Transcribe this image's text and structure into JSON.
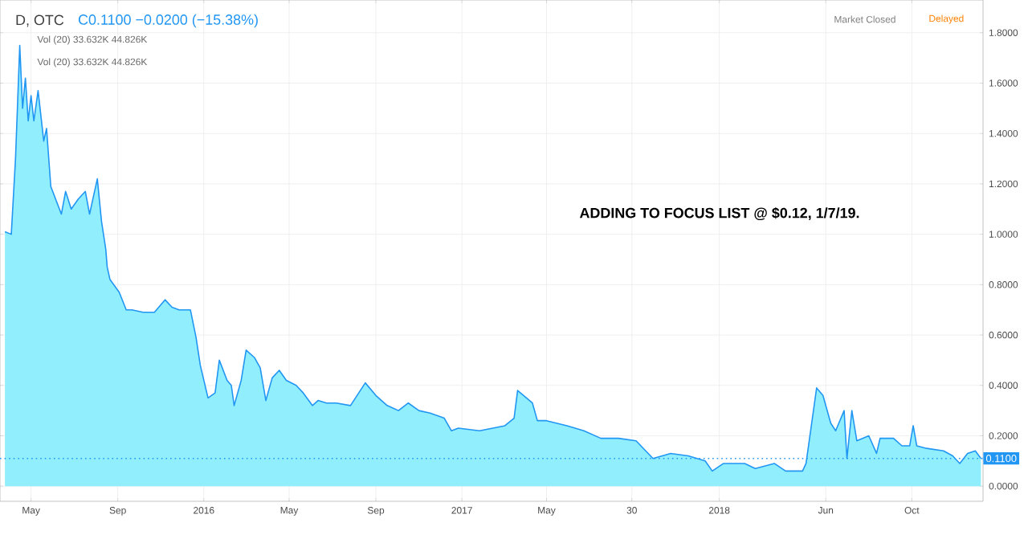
{
  "chart_data": {
    "type": "area",
    "title": "D, OTC",
    "subtitle": "C0.1100 −0.0200 (−15.38%)",
    "annotations": [
      "ADDING TO FOCUS LIST @ $0.12, 1/7/19.",
      "Vol (20)  33.632K  44.826K",
      "Vol (20)  33.632K  44.826K",
      "Market Closed",
      "Delayed"
    ],
    "x": [
      "2015-03-25",
      "2015-04-03",
      "2015-04-09",
      "2015-04-15",
      "2015-04-19",
      "2015-04-23",
      "2015-04-27",
      "2015-05-01",
      "2015-05-05",
      "2015-05-11",
      "2015-05-19",
      "2015-05-23",
      "2015-05-29",
      "2015-06-13",
      "2015-06-19",
      "2015-06-27",
      "2015-07-07",
      "2015-07-17",
      "2015-07-23",
      "2015-08-03",
      "2015-08-09",
      "2015-08-15",
      "2015-08-17",
      "2015-08-21",
      "2015-09-03",
      "2015-09-13",
      "2015-09-21",
      "2015-10-07",
      "2015-10-23",
      "2015-11-07",
      "2015-11-17",
      "2015-11-27",
      "2015-12-13",
      "2015-12-21",
      "2015-12-27",
      "2016-01-07",
      "2016-01-17",
      "2016-01-23",
      "2016-02-03",
      "2016-02-09",
      "2016-02-13",
      "2016-02-23",
      "2016-03-01",
      "2016-03-13",
      "2016-03-21",
      "2016-03-29",
      "2016-04-07",
      "2016-04-17",
      "2016-04-27",
      "2016-05-11",
      "2016-05-21",
      "2016-06-03",
      "2016-06-11",
      "2016-06-23",
      "2016-07-07",
      "2016-07-27",
      "2016-08-17",
      "2016-09-01",
      "2016-09-17",
      "2016-10-03",
      "2016-10-17",
      "2016-11-01",
      "2016-11-17",
      "2016-12-07",
      "2016-12-17",
      "2016-12-27",
      "2017-01-26",
      "2017-03-03",
      "2017-03-16",
      "2017-03-21",
      "2017-04-11",
      "2017-04-18",
      "2017-05-01",
      "2017-05-30",
      "2017-06-23",
      "2017-07-17",
      "2017-08-11",
      "2017-09-05",
      "2017-09-29",
      "2017-10-24",
      "2017-11-18",
      "2017-12-12",
      "2017-12-22",
      "2018-01-07",
      "2018-02-06",
      "2018-02-21",
      "2018-03-20",
      "2018-04-05",
      "2018-04-29",
      "2018-05-04",
      "2018-05-10",
      "2018-05-19",
      "2018-05-28",
      "2018-06-08",
      "2018-06-15",
      "2018-06-27",
      "2018-07-01",
      "2018-07-08",
      "2018-07-15",
      "2018-08-01",
      "2018-08-12",
      "2018-08-17",
      "2018-09-05",
      "2018-09-17",
      "2018-09-28",
      "2018-10-03",
      "2018-10-08",
      "2018-10-22",
      "2018-11-15",
      "2018-11-28",
      "2018-12-08",
      "2018-12-19",
      "2018-12-30",
      "2019-01-07"
    ],
    "series": [
      {
        "color": "#2196f3",
        "values": [
          1.01,
          1.0,
          1.3,
          1.75,
          1.5,
          1.62,
          1.45,
          1.55,
          1.45,
          1.57,
          1.37,
          1.42,
          1.19,
          1.08,
          1.17,
          1.1,
          1.14,
          1.17,
          1.08,
          1.22,
          1.05,
          0.94,
          0.87,
          0.82,
          0.77,
          0.7,
          0.7,
          0.69,
          0.69,
          0.74,
          0.71,
          0.7,
          0.7,
          0.59,
          0.48,
          0.35,
          0.37,
          0.5,
          0.42,
          0.4,
          0.32,
          0.42,
          0.54,
          0.51,
          0.47,
          0.34,
          0.43,
          0.46,
          0.42,
          0.4,
          0.37,
          0.32,
          0.34,
          0.33,
          0.33,
          0.32,
          0.41,
          0.36,
          0.32,
          0.3,
          0.33,
          0.3,
          0.29,
          0.27,
          0.22,
          0.23,
          0.22,
          0.24,
          0.27,
          0.38,
          0.33,
          0.26,
          0.26,
          0.24,
          0.22,
          0.19,
          0.19,
          0.18,
          0.11,
          0.13,
          0.12,
          0.1,
          0.06,
          0.09,
          0.09,
          0.07,
          0.09,
          0.06,
          0.06,
          0.09,
          0.21,
          0.39,
          0.36,
          0.25,
          0.22,
          0.3,
          0.11,
          0.3,
          0.18,
          0.2,
          0.13,
          0.19,
          0.19,
          0.16,
          0.16,
          0.24,
          0.16,
          0.15,
          0.14,
          0.12,
          0.09,
          0.13,
          0.14,
          0.11
        ]
      }
    ],
    "xlim": [
      "2015-03-18",
      "2019-01-10"
    ],
    "xticks": [
      {
        "value": "2015-05-01",
        "label": "May"
      },
      {
        "value": "2015-09-01",
        "label": "Sep"
      },
      {
        "value": "2016-01-01",
        "label": "2016"
      },
      {
        "value": "2016-05-01",
        "label": "May"
      },
      {
        "value": "2016-09-01",
        "label": "Sep"
      },
      {
        "value": "2017-01-01",
        "label": "2017"
      },
      {
        "value": "2017-05-01",
        "label": "May"
      },
      {
        "value": "2017-08-30",
        "label": "30"
      },
      {
        "value": "2018-01-01",
        "label": "2018"
      },
      {
        "value": "2018-06-01",
        "label": "Jun"
      },
      {
        "value": "2018-10-01",
        "label": "Oct"
      }
    ],
    "ylim": [
      -0.06,
      1.93
    ],
    "yticks": [
      {
        "value": 0,
        "label": "0.0000"
      },
      {
        "value": 0.2,
        "label": "0.2000"
      },
      {
        "value": 0.4,
        "label": "0.4000"
      },
      {
        "value": 0.6,
        "label": "0.6000"
      },
      {
        "value": 0.8,
        "label": "0.8000"
      },
      {
        "value": 1.0,
        "label": "1.0000"
      },
      {
        "value": 1.2,
        "label": "1.2000"
      },
      {
        "value": 1.4,
        "label": "1.4000"
      },
      {
        "value": 1.6,
        "label": "1.6000"
      },
      {
        "value": 1.8,
        "label": "1.8000"
      }
    ],
    "ref_lines": [
      {
        "axis": "y",
        "value": 0.11,
        "label": "0.1100",
        "color": "#2196f3",
        "line_style": "dotted"
      }
    ],
    "grid": true
  }
}
